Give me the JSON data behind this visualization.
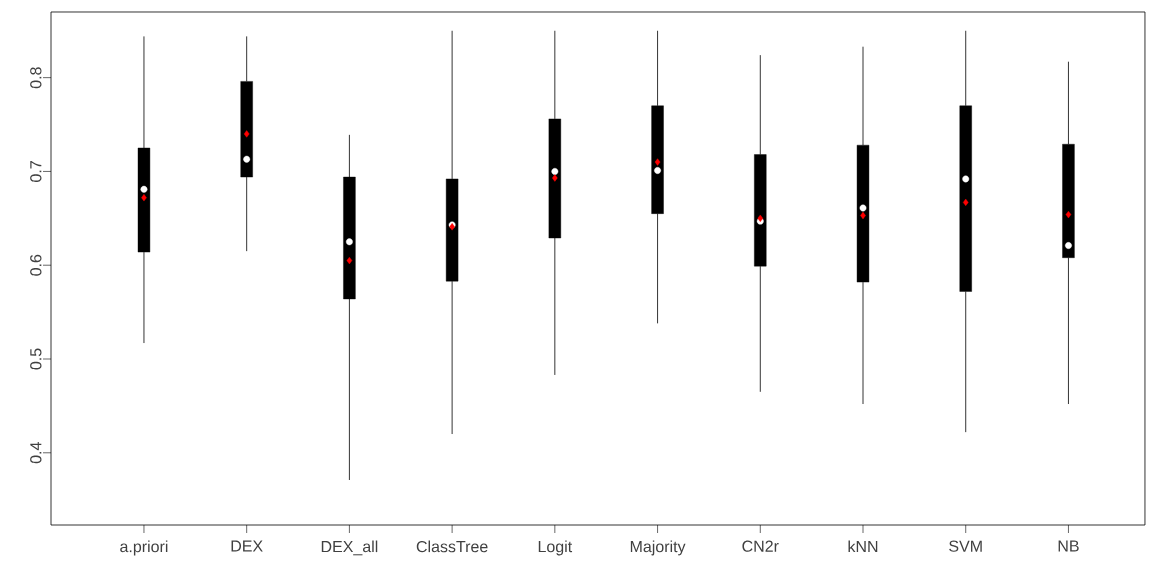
{
  "chart_data": {
    "type": "box",
    "categories": [
      "a.priori",
      "DEX",
      "DEX_all",
      "ClassTree",
      "Logit",
      "Majority",
      "CN2r",
      "kNN",
      "SVM",
      "NB"
    ],
    "boxes": [
      {
        "low": 0.517,
        "q1": 0.614,
        "median": 0.681,
        "q3": 0.725,
        "high": 0.844,
        "mean": 0.672
      },
      {
        "low": 0.615,
        "q1": 0.694,
        "median": 0.713,
        "q3": 0.796,
        "high": 0.844,
        "mean": 0.74
      },
      {
        "low": 0.371,
        "q1": 0.564,
        "median": 0.625,
        "q3": 0.694,
        "high": 0.739,
        "mean": 0.605
      },
      {
        "low": 0.42,
        "q1": 0.583,
        "median": 0.643,
        "q3": 0.692,
        "high": 0.85,
        "mean": 0.641
      },
      {
        "low": 0.483,
        "q1": 0.629,
        "median": 0.7,
        "q3": 0.756,
        "high": 0.85,
        "mean": 0.693
      },
      {
        "low": 0.538,
        "q1": 0.655,
        "median": 0.701,
        "q3": 0.77,
        "high": 0.85,
        "mean": 0.71
      },
      {
        "low": 0.465,
        "q1": 0.599,
        "median": 0.647,
        "q3": 0.718,
        "high": 0.824,
        "mean": 0.65
      },
      {
        "low": 0.452,
        "q1": 0.582,
        "median": 0.661,
        "q3": 0.728,
        "high": 0.833,
        "mean": 0.653
      },
      {
        "low": 0.422,
        "q1": 0.572,
        "median": 0.692,
        "q3": 0.77,
        "high": 0.85,
        "mean": 0.667
      },
      {
        "low": 0.452,
        "q1": 0.608,
        "median": 0.621,
        "q3": 0.729,
        "high": 0.817,
        "mean": 0.654
      }
    ],
    "ylim": [
      0.323,
      0.87
    ],
    "yticks": [
      0.4,
      0.5,
      0.6,
      0.7,
      0.8
    ]
  }
}
